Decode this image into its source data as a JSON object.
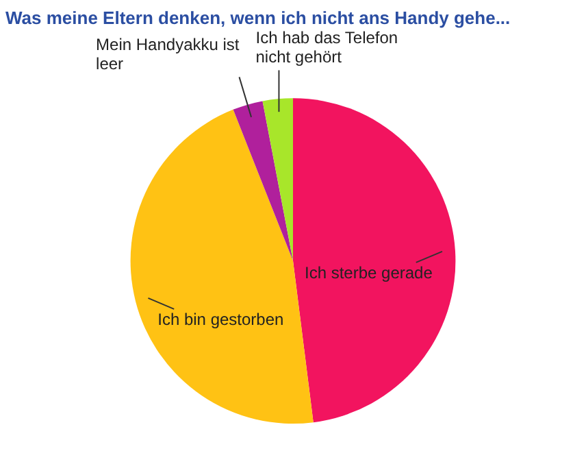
{
  "chart_data": {
    "type": "pie",
    "title": "Was meine Eltern denken, wenn ich nicht ans Handy gehe...",
    "categories": [
      "Ich sterbe gerade",
      "Ich bin gestorben",
      "Mein Handyakku ist leer",
      "Ich hab das Telefon nicht gehört"
    ],
    "values": [
      48,
      46,
      3,
      3
    ],
    "colors": [
      "#f2145f",
      "#ffc214",
      "#b0209c",
      "#a8e62a"
    ],
    "legend": false
  }
}
